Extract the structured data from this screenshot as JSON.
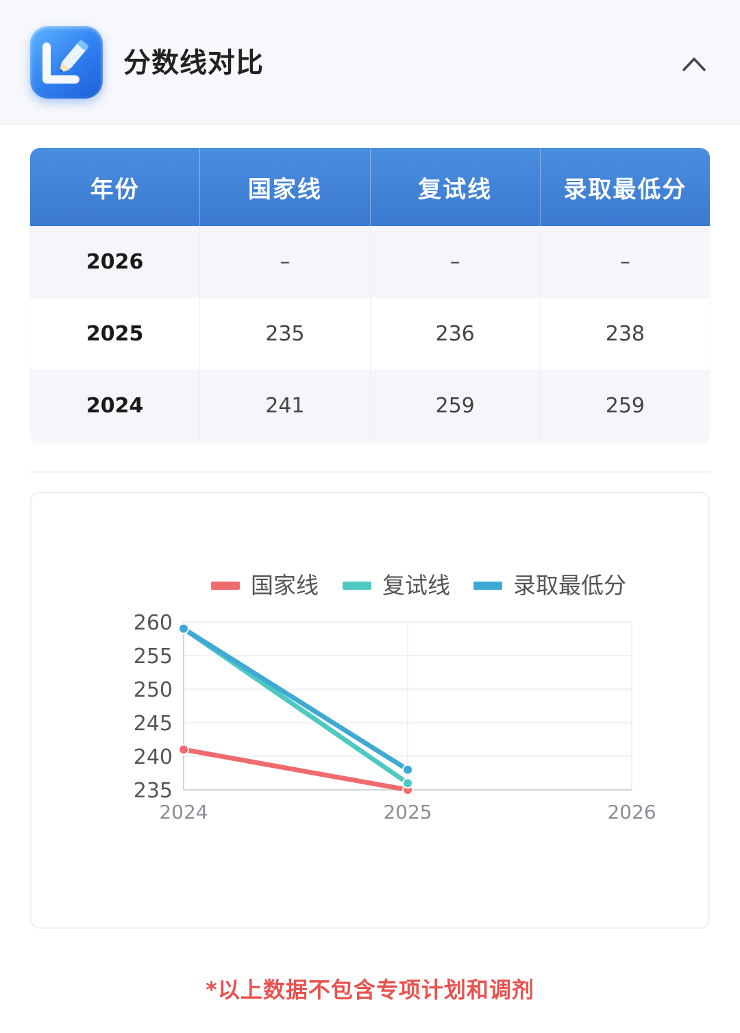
{
  "header": {
    "title": "分数线对比",
    "logo_icon": "pencil-letter-l-icon",
    "collapse_icon": "chevron-up-icon"
  },
  "table": {
    "columns": [
      "年份",
      "国家线",
      "复试线",
      "录取最低分"
    ],
    "rows": [
      [
        "2026",
        "–",
        "–",
        "–"
      ],
      [
        "2025",
        "235",
        "236",
        "238"
      ],
      [
        "2024",
        "241",
        "259",
        "259"
      ]
    ]
  },
  "chart_data": {
    "type": "line",
    "x": [
      "2024",
      "2025",
      "2026"
    ],
    "series": [
      {
        "name": "国家线",
        "color": "#ef6b6e",
        "values": [
          241,
          235,
          null
        ]
      },
      {
        "name": "复试线",
        "color": "#4ec9c2",
        "values": [
          259,
          236,
          null
        ]
      },
      {
        "name": "录取最低分",
        "color": "#3ea9d2",
        "values": [
          259,
          238,
          null
        ]
      }
    ],
    "yticks": [
      "235",
      "240",
      "245",
      "250",
      "255",
      "260"
    ],
    "ylim": [
      235,
      260
    ],
    "grid": true,
    "legend": "top"
  },
  "footnote": "*以上数据不包含专项计划和调剂"
}
